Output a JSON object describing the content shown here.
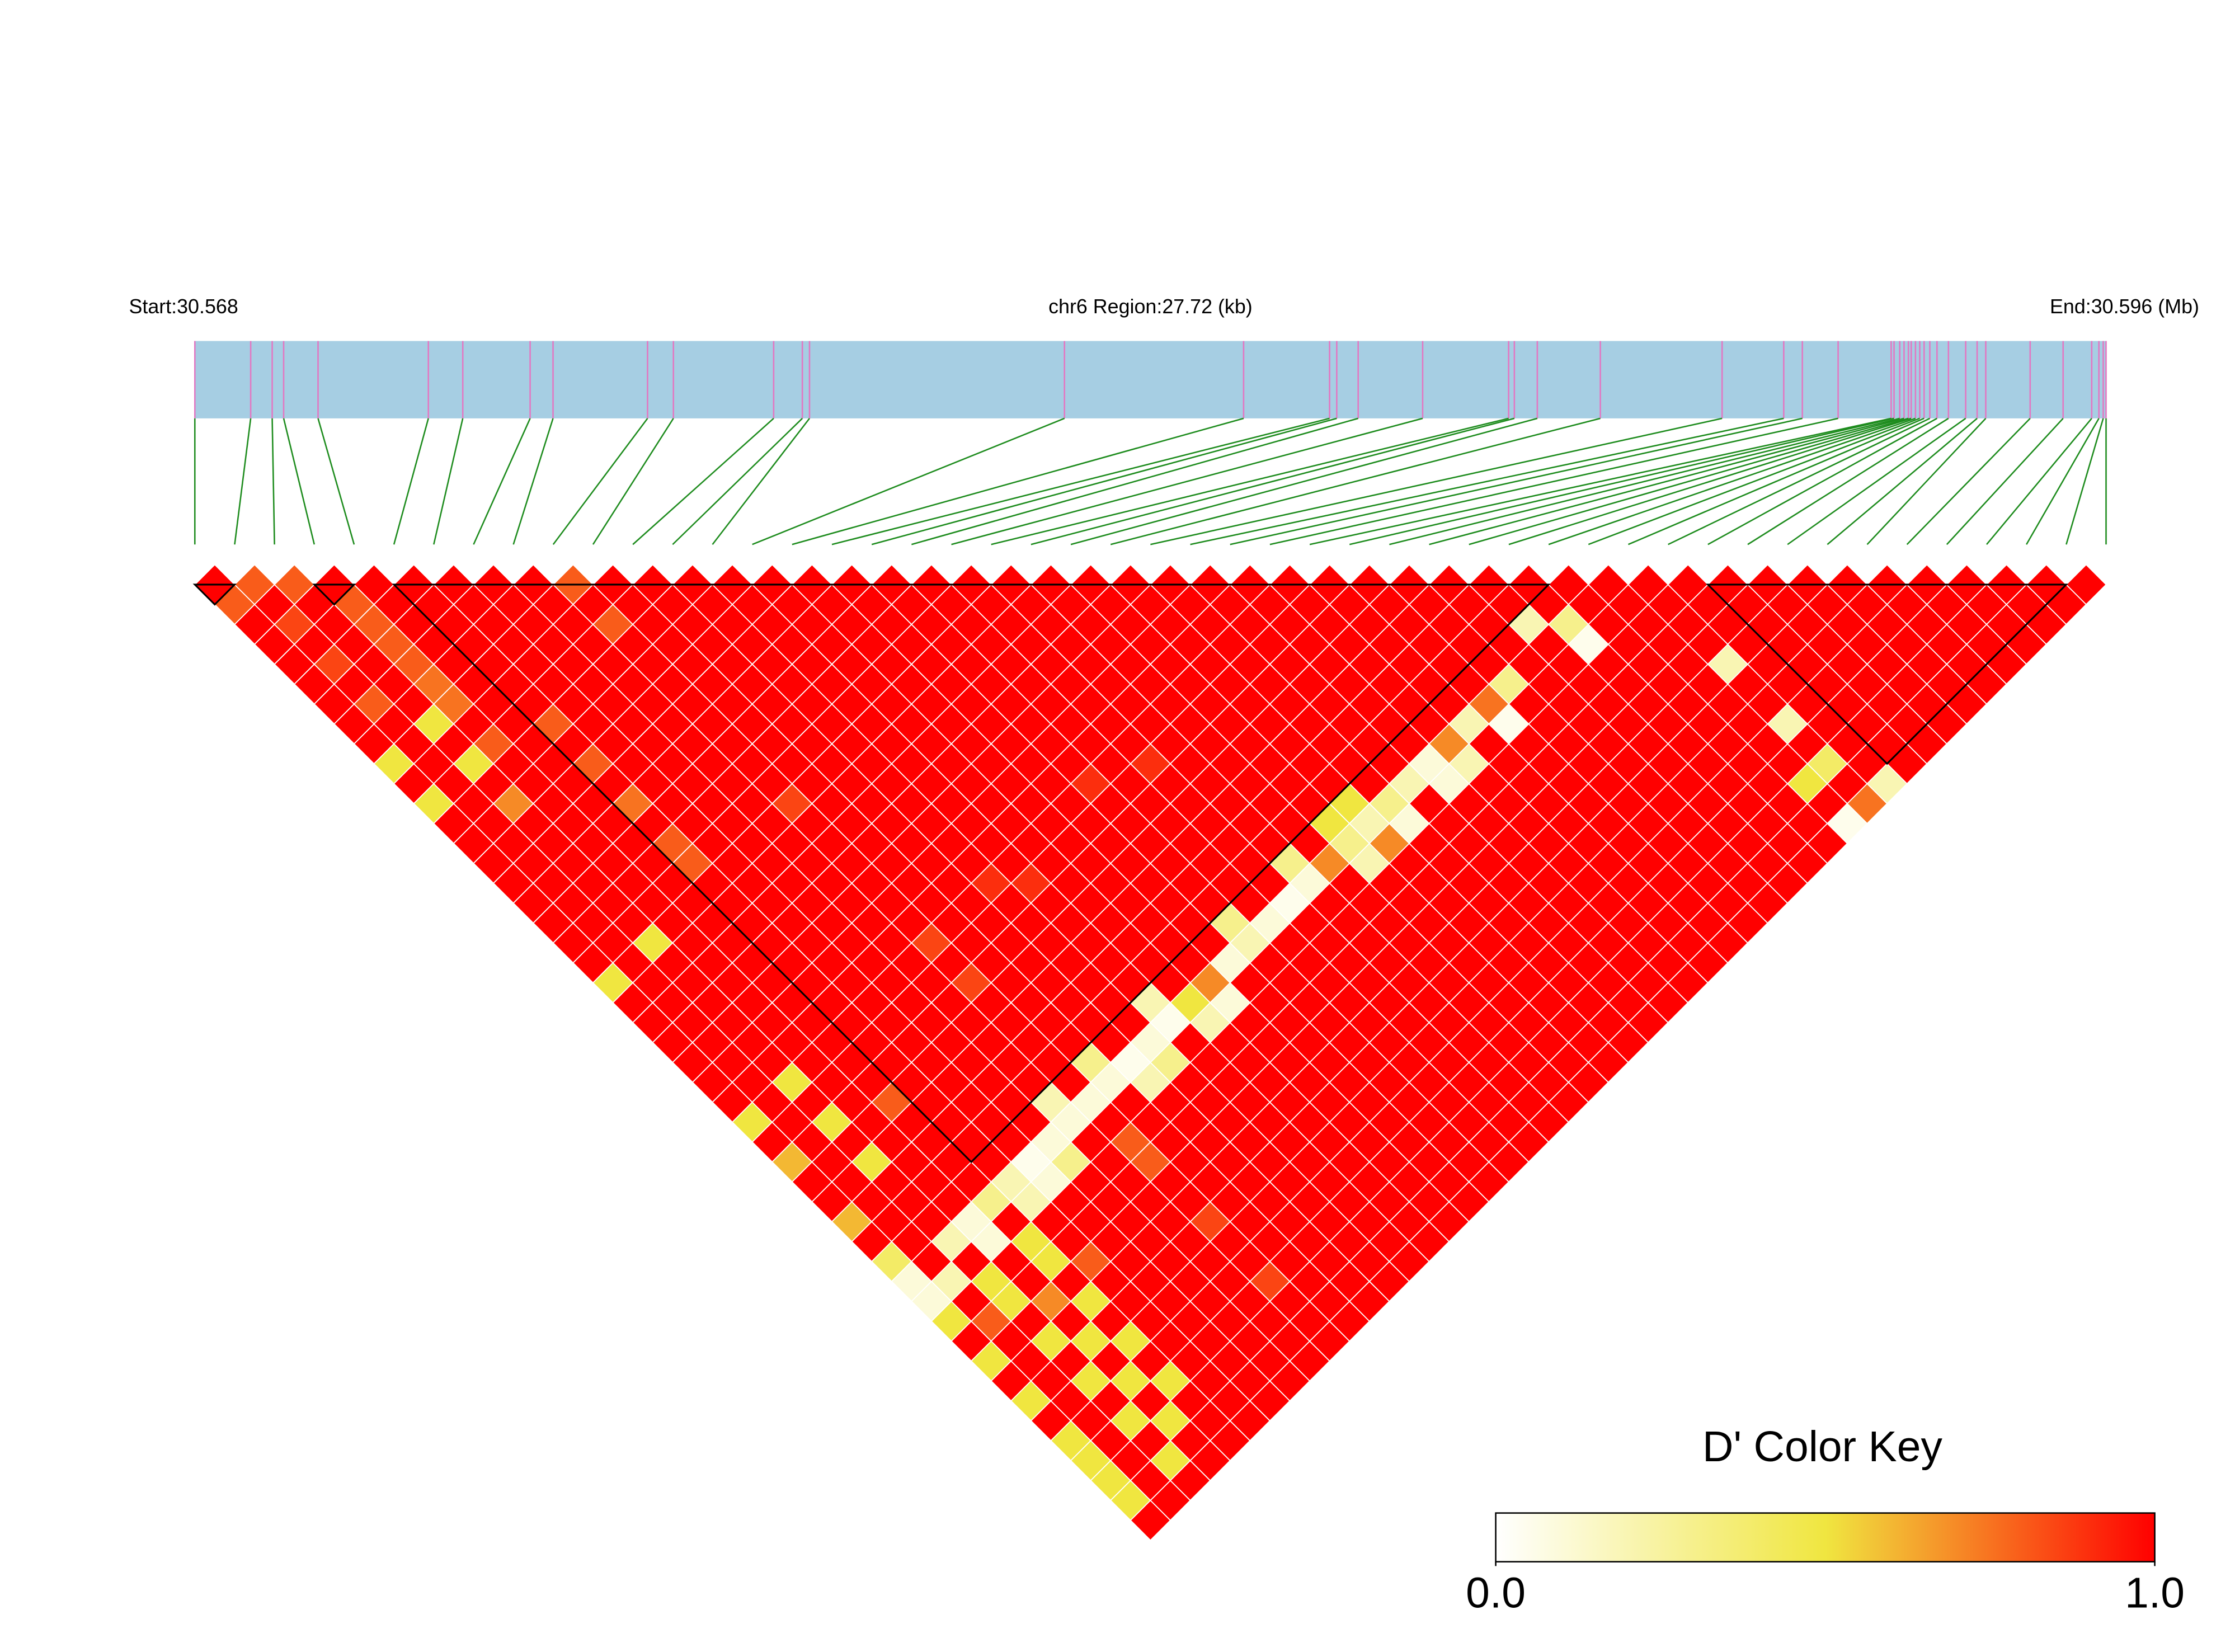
{
  "chart_data": {
    "type": "ld_heatmap",
    "start_label": "Start:30.568",
    "region_label": "chr6 Region:27.72 (kb)",
    "end_label": "End:30.596 (Mb)",
    "xlim": [
      0,
      27.72
    ],
    "positions_kb": [
      0,
      0.81,
      1.122,
      1.288,
      1.787,
      3.387,
      3.886,
      4.863,
      5.195,
      6.566,
      6.941,
      8.395,
      8.811,
      8.915,
      12.613,
      15.211,
      16.458,
      16.562,
      16.873,
      17.808,
      19.055,
      19.138,
      19.471,
      20.385,
      22.151,
      23.045,
      23.315,
      23.834,
      24.603,
      24.645,
      24.728,
      24.79,
      24.853,
      24.894,
      24.956,
      25.018,
      25.081,
      25.164,
      25.268,
      25.434,
      25.684,
      25.85,
      25.975,
      26.619,
      27.097,
      27.512,
      27.616,
      27.679,
      27.72
    ],
    "dprime": [
      [
        1,
        0.8,
        1,
        1,
        1,
        1,
        1,
        1,
        1,
        0.5,
        1,
        0.5,
        1,
        1,
        1,
        1,
        1,
        1,
        1,
        1,
        0.5,
        1,
        1,
        1,
        1,
        1,
        1,
        0.5,
        1,
        0.6,
        1,
        1,
        0.6,
        1,
        0.4,
        0.1,
        0.1,
        0.5,
        1,
        0.5,
        1,
        0.5,
        1,
        0.5,
        0.5,
        0.5,
        0.5,
        1
      ],
      [
        0.8,
        1,
        0.85,
        1,
        0.85,
        1,
        0.8,
        1,
        1,
        1,
        1,
        1,
        1,
        1,
        1,
        1,
        1,
        1,
        1,
        1,
        1,
        1,
        1,
        1,
        1,
        1,
        1,
        1,
        1,
        1,
        1,
        1,
        1,
        1,
        1,
        0.2,
        1,
        0.8,
        1,
        1,
        1,
        1,
        1,
        1,
        1,
        1,
        1
      ],
      [
        0.8,
        1,
        1,
        1,
        1,
        1,
        1,
        0.5,
        1,
        0.5,
        1,
        0.7,
        1,
        1,
        1,
        1,
        1,
        1,
        0.5,
        1,
        1,
        1,
        1,
        1,
        1,
        0.5,
        1,
        0.5,
        1,
        0.5,
        1,
        1,
        1,
        0.2,
        1,
        0.5,
        0.5,
        1,
        0.5,
        1,
        0.5,
        1,
        0.5,
        1,
        0.5,
        1
      ],
      [
        1,
        0.8,
        0.8,
        0.8,
        0.8,
        0.75,
        0.75,
        1,
        0.8,
        1,
        1,
        1,
        1,
        1,
        1,
        1,
        1,
        1,
        1,
        1,
        1,
        1,
        1,
        1,
        1,
        1,
        1,
        1,
        1,
        1,
        1,
        1,
        0.1,
        0.1,
        1,
        1,
        0.7,
        1,
        0.5,
        1,
        0.5,
        1,
        0.5,
        1,
        1
      ],
      [
        1,
        1,
        1,
        1,
        1,
        1,
        1,
        1,
        1,
        1,
        1,
        1,
        1,
        1,
        1,
        1,
        1,
        1,
        1,
        1,
        1,
        1,
        1,
        1,
        1,
        1,
        0.8,
        1,
        1,
        1,
        1,
        0.3,
        1,
        0.5,
        0.5,
        1,
        0.5,
        1,
        0.5,
        1,
        0.5,
        1,
        1,
        1
      ],
      [
        1,
        1,
        1,
        1,
        1,
        1,
        1,
        0.8,
        1,
        0.8,
        1,
        0.75,
        1,
        0.8,
        0.8,
        1,
        1,
        1,
        1,
        1,
        1,
        1,
        1,
        1,
        1,
        1,
        1,
        1,
        1,
        1,
        0.2,
        0.2,
        1,
        1,
        0.8,
        1,
        1,
        1,
        1,
        1,
        1,
        1,
        1
      ],
      [
        1,
        1,
        1,
        1,
        1,
        1,
        1,
        1,
        1,
        1,
        1,
        1,
        1,
        1,
        1,
        1,
        1,
        1,
        1,
        1,
        1,
        1,
        1,
        1,
        1,
        1,
        1,
        1,
        1,
        0.05,
        0.1,
        1,
        1,
        1,
        1,
        1,
        1,
        1,
        1,
        1,
        1,
        1
      ],
      [
        1,
        1,
        1,
        1,
        1,
        1,
        1,
        1,
        1,
        1,
        1,
        1,
        1,
        1,
        1,
        1,
        1,
        1,
        1,
        1,
        1,
        1,
        1,
        1,
        1,
        1,
        1,
        1,
        0.1,
        0.3,
        1,
        1,
        1,
        1,
        1,
        1,
        1,
        1,
        1,
        1,
        1
      ],
      [
        1,
        1,
        1,
        1,
        1,
        1,
        1,
        1,
        1,
        1,
        1,
        1,
        1,
        1,
        1,
        1,
        1,
        1,
        1,
        1,
        1,
        1,
        1,
        1,
        1,
        1,
        0.2,
        0.1,
        1,
        1,
        1,
        1,
        1,
        1,
        1,
        1,
        1,
        1,
        1,
        1
      ],
      [
        0.8,
        1,
        0.8,
        1,
        1,
        1,
        1,
        1,
        1,
        1,
        1,
        0.85,
        1,
        1,
        1,
        1,
        1,
        1,
        0.85,
        1,
        0.85,
        1,
        1,
        1,
        1,
        1,
        0.1,
        1,
        0.8,
        0.8,
        1,
        1,
        0.85,
        1,
        1,
        0.85,
        1,
        1,
        1
      ],
      [
        1,
        1,
        1,
        1,
        1,
        1,
        1,
        1,
        1,
        1,
        1,
        1,
        1,
        1,
        1,
        1,
        1,
        1,
        1,
        1,
        1,
        1,
        1,
        1,
        0.3,
        0.1,
        1,
        1,
        1,
        1,
        1,
        1,
        1,
        1,
        1,
        1,
        1,
        1
      ],
      [
        1,
        1,
        1,
        1,
        1,
        1,
        1,
        1,
        1,
        1,
        1,
        1,
        1,
        1,
        1,
        1,
        1,
        1,
        1,
        1,
        1,
        1,
        1,
        1,
        0.05,
        0.2,
        1,
        1,
        1,
        1,
        1,
        1,
        1,
        1,
        1,
        1,
        1
      ],
      [
        1,
        1,
        1,
        1,
        1,
        1,
        1,
        1,
        1,
        1,
        1,
        1,
        1,
        1,
        1,
        0.9,
        1,
        1,
        1,
        1,
        1,
        1,
        1,
        0.1,
        0.3,
        1,
        1,
        1,
        1,
        1,
        1,
        1,
        1,
        1,
        1,
        1
      ],
      [
        1,
        1,
        1,
        1,
        1,
        1,
        1,
        1,
        1,
        1,
        1,
        1,
        1,
        1,
        1,
        0.9,
        1,
        1,
        1,
        1,
        1,
        0.2,
        0.05,
        1,
        1,
        1,
        1,
        1,
        1,
        1,
        1,
        1,
        1,
        1,
        1
      ],
      [
        1,
        1,
        1,
        1,
        1,
        1,
        1,
        1,
        1,
        1,
        1,
        1,
        1,
        1,
        1,
        1,
        1,
        1,
        1,
        1,
        1,
        0.5,
        0.2,
        1,
        1,
        1,
        1,
        1,
        1,
        1,
        1,
        1,
        1,
        1
      ],
      [
        1,
        1,
        1,
        1,
        1,
        1,
        1,
        1,
        1,
        1,
        1,
        1,
        1,
        1,
        1,
        1,
        1,
        1,
        1,
        1,
        0.7,
        0.1,
        1,
        1,
        1,
        1,
        1,
        1,
        1,
        1,
        1,
        1,
        1
      ],
      [
        1,
        1,
        1,
        1,
        1,
        1,
        1,
        1,
        1,
        1,
        1,
        1,
        1,
        1,
        1,
        1,
        1,
        1,
        1,
        0.1,
        1,
        1,
        1,
        1,
        1,
        1,
        1,
        1,
        1,
        1,
        1,
        1
      ],
      [
        1,
        1,
        1,
        1,
        1,
        1,
        1,
        1,
        1,
        1,
        0.9,
        1,
        1,
        1,
        1,
        1,
        1,
        0.3,
        0.2,
        1,
        1,
        1,
        1,
        1,
        1,
        1,
        1,
        1,
        1,
        1,
        1
      ],
      [
        1,
        1,
        1,
        1,
        1,
        1,
        1,
        1,
        1,
        1,
        1,
        1,
        1,
        1,
        1,
        1,
        1,
        0.1,
        1,
        1,
        1,
        1,
        1,
        1,
        1,
        1,
        1,
        1,
        1,
        1
      ],
      [
        1,
        1,
        1,
        1,
        1,
        1,
        1,
        1,
        1,
        0.9,
        1,
        1,
        1,
        1,
        1,
        1,
        0.05,
        1,
        1,
        1,
        1,
        1,
        1,
        1,
        1,
        1,
        1,
        1,
        1
      ],
      [
        1,
        1,
        1,
        1,
        1,
        1,
        1,
        1,
        1,
        1,
        1,
        1,
        1,
        1,
        0.3,
        0.1,
        1,
        1,
        1,
        1,
        1,
        1,
        1,
        1,
        1,
        1,
        1,
        1
      ],
      [
        1,
        1,
        1,
        1,
        1,
        1,
        1,
        1,
        1,
        1,
        1,
        1,
        1,
        1,
        0.7,
        1,
        1,
        1,
        1,
        1,
        1,
        1,
        1,
        1,
        1,
        1,
        1
      ],
      [
        1,
        1,
        1,
        1,
        1,
        1,
        1,
        1,
        1,
        1,
        1,
        1,
        0.5,
        0.3,
        0.2,
        1,
        1,
        1,
        1,
        1,
        1,
        1,
        1,
        1,
        1,
        1
      ],
      [
        1,
        1,
        1,
        1,
        1,
        1,
        1,
        1,
        1,
        1,
        1,
        0.5,
        0.2,
        0.7,
        1,
        1,
        1,
        1,
        1,
        1,
        1,
        1,
        1,
        1,
        1
      ],
      [
        1,
        1,
        1,
        1,
        1,
        1,
        1,
        1,
        1,
        1,
        1,
        0.3,
        0.1,
        1,
        1,
        1,
        1,
        1,
        1,
        1,
        1,
        1,
        1,
        1
      ],
      [
        1,
        1,
        1,
        1,
        1,
        1,
        1,
        1,
        1,
        1,
        0.2,
        1,
        1,
        1,
        1,
        1,
        1,
        1,
        1,
        1,
        1,
        1,
        1
      ],
      [
        1,
        1,
        1,
        1,
        1,
        1,
        1,
        1,
        1,
        0.1,
        0.1,
        1,
        1,
        1,
        1,
        1,
        1,
        1,
        1,
        1,
        1,
        1
      ],
      [
        1,
        1,
        1,
        1,
        1,
        1,
        1,
        1,
        0.7,
        0.2,
        1,
        1,
        1,
        1,
        1,
        1,
        1,
        1,
        1,
        1,
        1
      ],
      [
        1,
        1,
        1,
        1,
        1,
        1,
        1,
        0.2,
        1,
        1,
        1,
        1,
        1,
        1,
        1,
        1,
        1,
        1,
        1,
        1
      ],
      [
        1,
        1,
        1,
        1,
        1,
        1,
        0.75,
        0.05,
        1,
        1,
        1,
        1,
        1,
        1,
        1,
        1,
        1,
        1,
        1
      ],
      [
        1,
        1,
        1,
        1,
        1,
        0.3,
        1,
        1,
        1,
        1,
        1,
        1,
        1,
        1,
        1,
        1,
        1,
        1
      ],
      [
        1,
        1,
        1,
        1,
        1,
        1,
        1,
        1,
        1,
        1,
        1,
        1,
        1,
        1,
        1,
        1,
        1
      ],
      [
        1,
        1,
        0.2,
        1,
        1,
        1,
        1,
        1,
        1,
        1,
        1,
        1,
        1,
        1,
        1,
        1
      ],
      [
        1,
        1,
        0.3,
        0.05,
        1,
        1,
        1,
        1,
        1,
        1,
        1,
        1,
        1,
        1,
        1
      ],
      [
        1,
        1,
        1,
        1,
        1,
        1,
        1,
        1,
        1,
        1,
        1,
        1,
        1,
        1
      ],
      [
        1,
        1,
        1,
        1,
        1,
        1,
        1,
        1,
        1,
        1,
        0.5,
        1,
        0.05
      ],
      [
        1,
        1,
        1,
        1,
        0.2,
        1,
        1,
        0.2,
        1,
        0.4,
        1,
        0.75
      ],
      [
        1,
        1,
        1,
        1,
        1,
        1,
        1,
        1,
        1,
        1,
        0.2
      ],
      [
        1,
        1,
        1,
        1,
        1,
        1,
        1,
        1,
        1,
        1
      ],
      [
        1,
        1,
        1,
        1,
        1,
        1,
        1,
        1,
        1
      ],
      [
        1,
        1,
        1,
        1,
        1,
        1,
        1,
        1
      ],
      [
        1,
        1,
        1,
        1,
        1,
        1,
        1
      ],
      [
        1,
        1,
        1,
        1,
        1,
        1
      ],
      [
        1,
        1,
        1,
        1,
        1
      ],
      [
        1,
        1,
        1,
        1
      ],
      [
        1,
        1,
        1
      ],
      [
        1,
        1
      ],
      [
        1
      ]
    ],
    "blocks": [
      [
        0,
        1
      ],
      [
        3,
        4
      ],
      [
        5,
        34
      ],
      [
        38,
        47
      ]
    ],
    "gene_bar_color": "#a6cee3",
    "snp_line_color": "#e377c2",
    "link_color": "#1e8c1e",
    "color_key": {
      "title": "D' Color Key",
      "ticks": [
        {
          "value": 0,
          "label": "0.0"
        },
        {
          "value": 1,
          "label": "1.0"
        }
      ],
      "colors": [
        "#ffffff",
        "#f0e640",
        "#ff0000"
      ]
    }
  }
}
